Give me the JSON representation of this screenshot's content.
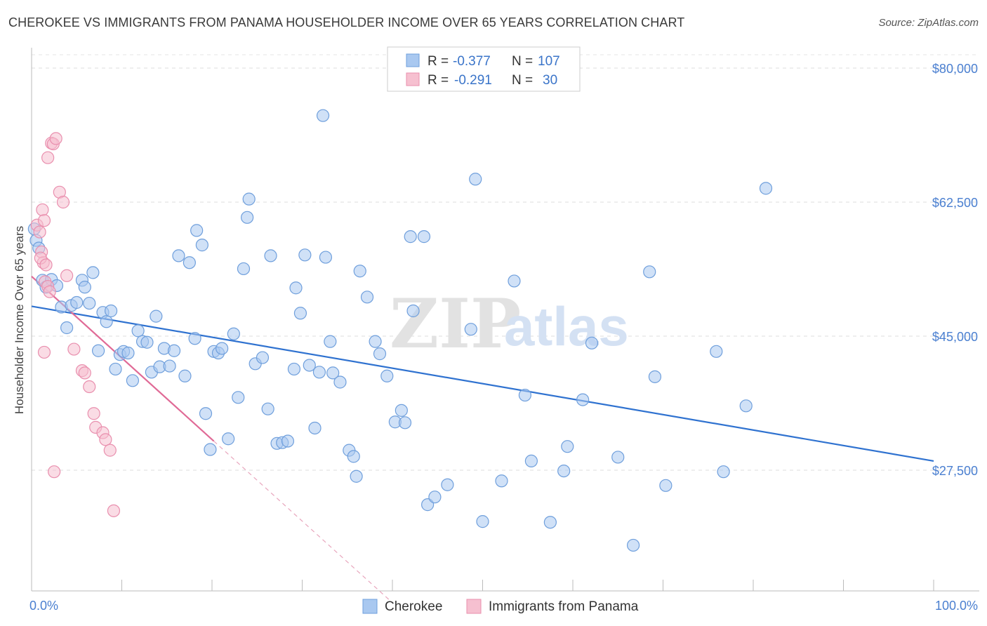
{
  "title": "CHEROKEE VS IMMIGRANTS FROM PANAMA HOUSEHOLDER INCOME OVER 65 YEARS CORRELATION CHART",
  "source": "Source: ZipAtlas.com",
  "watermark": {
    "zip": "ZIP",
    "atlas": "atlas"
  },
  "legend": {
    "r_label": "R =",
    "n_label": "N =",
    "rows": [
      {
        "r": "-0.377",
        "n": "107",
        "color": "#a9c8f0",
        "stroke": "#6f9fdc"
      },
      {
        "r": "-0.291",
        "n": "30",
        "color": "#f6c0d0",
        "stroke": "#e98fae"
      }
    ]
  },
  "bottom_legend": [
    {
      "label": "Cherokee",
      "color": "#a9c8f0",
      "stroke": "#6f9fdc"
    },
    {
      "label": "Immigrants from Panama",
      "color": "#f6c0d0",
      "stroke": "#e98fae"
    }
  ],
  "chart_data": {
    "type": "scatter",
    "title": "CHEROKEE VS IMMIGRANTS FROM PANAMA HOUSEHOLDER INCOME OVER 65 YEARS CORRELATION CHART",
    "xlabel": "",
    "ylabel": "Householder Income Over 65 years",
    "x_tick_labels": [
      "0.0%",
      "100.0%"
    ],
    "y_tick_labels": [
      "$27,500",
      "$45,000",
      "$62,500",
      "$80,000"
    ],
    "y_ticks": [
      27500,
      45000,
      62500,
      80000
    ],
    "xlim": [
      0,
      100
    ],
    "ylim": [
      10000,
      82000
    ],
    "grid": true,
    "legend_position": "top-center",
    "series": [
      {
        "name": "Cherokee",
        "color": "#a9c8f0",
        "stroke": "#6f9fdc",
        "trend": {
          "x": [
            0,
            100
          ],
          "y": [
            48900,
            28700
          ],
          "color": "#2f72d0"
        },
        "points": [
          [
            0.3,
            59000
          ],
          [
            0.5,
            57500
          ],
          [
            0.8,
            56500
          ],
          [
            1.2,
            52300
          ],
          [
            1.6,
            51400
          ],
          [
            2.2,
            52400
          ],
          [
            2.8,
            51600
          ],
          [
            3.3,
            48800
          ],
          [
            3.9,
            46100
          ],
          [
            4.4,
            49000
          ],
          [
            5.0,
            49400
          ],
          [
            5.6,
            52300
          ],
          [
            5.9,
            51400
          ],
          [
            6.4,
            49300
          ],
          [
            6.8,
            53300
          ],
          [
            7.4,
            43100
          ],
          [
            7.9,
            48100
          ],
          [
            8.3,
            46900
          ],
          [
            8.8,
            48300
          ],
          [
            9.3,
            40700
          ],
          [
            9.8,
            42600
          ],
          [
            10.2,
            43000
          ],
          [
            10.7,
            42800
          ],
          [
            11.2,
            39200
          ],
          [
            11.8,
            45700
          ],
          [
            12.3,
            44300
          ],
          [
            12.8,
            44200
          ],
          [
            13.3,
            40300
          ],
          [
            13.8,
            47600
          ],
          [
            14.2,
            41000
          ],
          [
            14.7,
            43400
          ],
          [
            15.3,
            41100
          ],
          [
            15.8,
            43100
          ],
          [
            16.3,
            55500
          ],
          [
            17.0,
            39800
          ],
          [
            17.5,
            54600
          ],
          [
            18.1,
            44700
          ],
          [
            18.3,
            58800
          ],
          [
            18.9,
            56900
          ],
          [
            19.3,
            34900
          ],
          [
            19.8,
            30200
          ],
          [
            20.2,
            43000
          ],
          [
            20.7,
            42800
          ],
          [
            21.1,
            43400
          ],
          [
            21.8,
            31600
          ],
          [
            22.4,
            45300
          ],
          [
            22.9,
            37000
          ],
          [
            23.5,
            53800
          ],
          [
            23.9,
            60500
          ],
          [
            24.1,
            62900
          ],
          [
            24.8,
            41400
          ],
          [
            25.6,
            42200
          ],
          [
            26.2,
            35500
          ],
          [
            26.5,
            55500
          ],
          [
            27.2,
            31000
          ],
          [
            27.8,
            31100
          ],
          [
            28.4,
            31300
          ],
          [
            29.1,
            40700
          ],
          [
            29.3,
            51300
          ],
          [
            29.8,
            48000
          ],
          [
            30.3,
            55600
          ],
          [
            30.8,
            41200
          ],
          [
            31.4,
            33000
          ],
          [
            31.9,
            40300
          ],
          [
            32.3,
            73800
          ],
          [
            32.6,
            55300
          ],
          [
            33.1,
            44300
          ],
          [
            33.4,
            40200
          ],
          [
            34.2,
            39000
          ],
          [
            35.2,
            30100
          ],
          [
            35.7,
            29300
          ],
          [
            36.0,
            26700
          ],
          [
            36.4,
            53500
          ],
          [
            37.2,
            50100
          ],
          [
            38.1,
            44300
          ],
          [
            38.6,
            42700
          ],
          [
            39.4,
            39800
          ],
          [
            40.3,
            33800
          ],
          [
            41.0,
            35300
          ],
          [
            41.4,
            33700
          ],
          [
            42.0,
            58000
          ],
          [
            42.3,
            48300
          ],
          [
            43.5,
            58000
          ],
          [
            43.9,
            23000
          ],
          [
            44.7,
            24000
          ],
          [
            46.1,
            25600
          ],
          [
            48.7,
            45900
          ],
          [
            49.2,
            65500
          ],
          [
            50.0,
            20800
          ],
          [
            52.1,
            26100
          ],
          [
            53.5,
            52200
          ],
          [
            54.7,
            37300
          ],
          [
            55.4,
            28700
          ],
          [
            57.5,
            20700
          ],
          [
            59.0,
            27400
          ],
          [
            59.4,
            30600
          ],
          [
            61.1,
            36700
          ],
          [
            62.1,
            44100
          ],
          [
            65.0,
            29200
          ],
          [
            66.7,
            17700
          ],
          [
            68.5,
            53400
          ],
          [
            69.1,
            39700
          ],
          [
            70.3,
            25500
          ],
          [
            75.9,
            43000
          ],
          [
            76.7,
            27300
          ],
          [
            79.2,
            35900
          ],
          [
            81.4,
            64300
          ]
        ]
      },
      {
        "name": "Immigrants from Panama",
        "color": "#f6c0d0",
        "stroke": "#e98fae",
        "trend": {
          "x": [
            0,
            20.2
          ],
          "y": [
            52800,
            31300
          ],
          "color": "#e06a96",
          "dashed_extension": {
            "x": [
              20.2,
              40.0
            ],
            "y": [
              31300,
              10200
            ]
          }
        },
        "points": [
          [
            0.6,
            59500
          ],
          [
            0.9,
            58600
          ],
          [
            1.1,
            56000
          ],
          [
            1.3,
            54600
          ],
          [
            1.5,
            52100
          ],
          [
            1.8,
            51500
          ],
          [
            1.0,
            55200
          ],
          [
            1.2,
            61500
          ],
          [
            1.4,
            60100
          ],
          [
            1.6,
            54300
          ],
          [
            1.8,
            68300
          ],
          [
            2.2,
            70200
          ],
          [
            2.4,
            70100
          ],
          [
            2.7,
            70800
          ],
          [
            3.1,
            63800
          ],
          [
            3.5,
            62500
          ],
          [
            3.9,
            52900
          ],
          [
            4.7,
            43300
          ],
          [
            5.6,
            40500
          ],
          [
            5.9,
            40200
          ],
          [
            6.4,
            38400
          ],
          [
            6.9,
            34900
          ],
          [
            7.1,
            33100
          ],
          [
            7.9,
            32400
          ],
          [
            8.2,
            31500
          ],
          [
            8.7,
            30100
          ],
          [
            2.0,
            50800
          ],
          [
            2.5,
            27300
          ],
          [
            1.4,
            42900
          ],
          [
            9.1,
            22200
          ]
        ]
      }
    ]
  }
}
